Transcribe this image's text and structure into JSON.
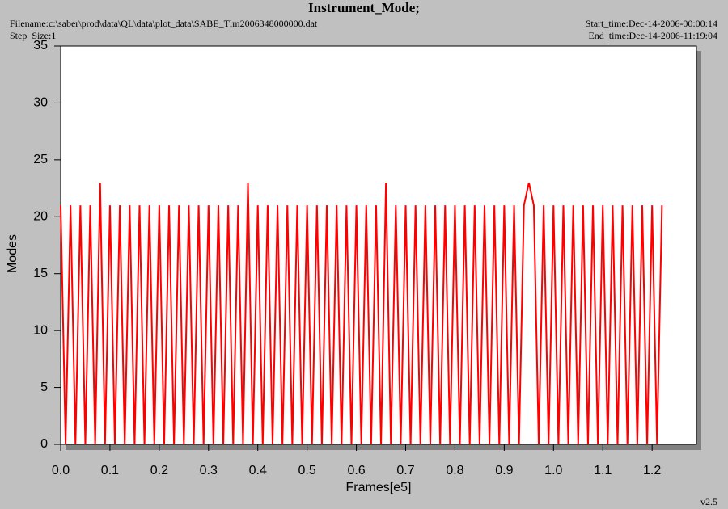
{
  "chart_data": {
    "type": "line",
    "title": "Instrument_Mode;",
    "filename": "Filename:c:\\saber\\prod\\data\\QL\\data\\plot_data\\SABE_Tlm2006348000000.dat",
    "step_size": "Step_Size:1",
    "start_time": "Start_time:Dec-14-2006-00:00:14",
    "end_time": "End_time:Dec-14-2006-11:19:04",
    "version": "v2.5",
    "x_label": "Frames[e5]",
    "y_label": "Modes",
    "xlim": [
      0,
      1.29
    ],
    "ylim": [
      0,
      35
    ],
    "xticks": [
      {
        "value": 0,
        "label": "0.0"
      },
      0.1,
      0.2,
      0.3,
      0.4,
      0.5,
      0.6,
      0.7,
      0.8,
      0.9,
      {
        "value": 1,
        "label": "1.0"
      },
      1.1,
      1.2
    ],
    "yticks": [
      0,
      5,
      10,
      15,
      20,
      25,
      30,
      35
    ],
    "x": [
      0,
      0.01,
      0.02,
      0.03,
      0.04,
      0.05,
      0.06,
      0.07,
      0.08,
      0.09,
      0.1,
      0.11,
      0.12,
      0.13,
      0.14,
      0.15,
      0.16,
      0.17,
      0.18,
      0.19,
      0.2,
      0.21,
      0.22,
      0.23,
      0.24,
      0.25,
      0.26,
      0.27,
      0.28,
      0.29,
      0.3,
      0.31,
      0.32,
      0.33,
      0.34,
      0.35,
      0.36,
      0.37,
      0.38,
      0.39,
      0.4,
      0.41,
      0.42,
      0.43,
      0.44,
      0.45,
      0.46,
      0.47,
      0.48,
      0.49,
      0.5,
      0.51,
      0.52,
      0.53,
      0.54,
      0.55,
      0.56,
      0.57,
      0.58,
      0.59,
      0.6,
      0.61,
      0.62,
      0.63,
      0.64,
      0.65,
      0.66,
      0.67,
      0.68,
      0.69,
      0.7,
      0.71,
      0.72,
      0.73,
      0.74,
      0.75,
      0.76,
      0.77,
      0.78,
      0.79,
      0.8,
      0.81,
      0.82,
      0.83,
      0.84,
      0.85,
      0.86,
      0.87,
      0.88,
      0.89,
      0.9,
      0.91,
      0.92,
      0.93,
      0.94,
      0.95,
      0.96,
      0.97,
      0.98,
      0.99,
      1,
      1.01,
      1.02,
      1.03,
      1.04,
      1.05,
      1.06,
      1.07,
      1.08,
      1.09,
      1.1,
      1.11,
      1.12,
      1.13,
      1.14,
      1.15,
      1.16,
      1.17,
      1.18,
      1.19,
      1.2,
      1.21,
      1.22
    ],
    "series": [
      {
        "name": "Instrument_Mode",
        "color": "#ff0000",
        "values": [
          21,
          0,
          21,
          0,
          21,
          0,
          21,
          0,
          23,
          0,
          21,
          0,
          21,
          0,
          21,
          0,
          21,
          0,
          21,
          0,
          21,
          0,
          21,
          0,
          21,
          0,
          21,
          0,
          21,
          0,
          21,
          0,
          21,
          0,
          21,
          0,
          21,
          0,
          23,
          0,
          21,
          0,
          21,
          0,
          21,
          0,
          21,
          0,
          21,
          0,
          21,
          0,
          21,
          0,
          21,
          0,
          21,
          0,
          21,
          0,
          21,
          0,
          21,
          0,
          21,
          0,
          23,
          0,
          21,
          0,
          21,
          0,
          21,
          0,
          21,
          0,
          21,
          0,
          21,
          0,
          21,
          0,
          21,
          0,
          21,
          0,
          21,
          0,
          21,
          0,
          21,
          0,
          21,
          0,
          21,
          23,
          21,
          0,
          21,
          0,
          21,
          0,
          21,
          0,
          21,
          0,
          21,
          0,
          21,
          0,
          21,
          0,
          21,
          0,
          21,
          0,
          21,
          0,
          21,
          0,
          21,
          0,
          21
        ]
      }
    ]
  }
}
